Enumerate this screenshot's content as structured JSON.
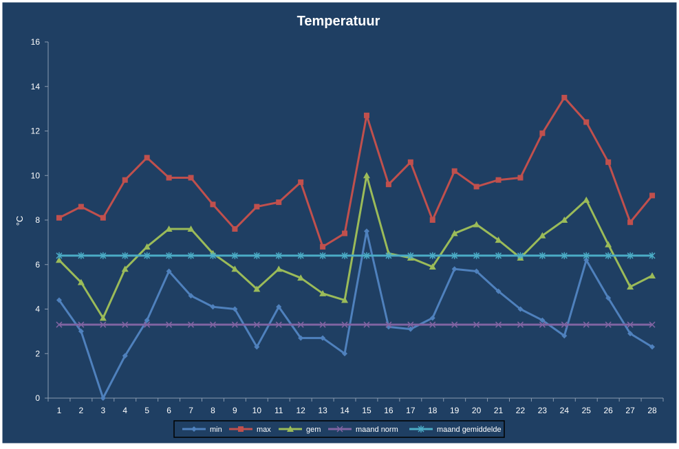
{
  "chart_data": {
    "type": "line",
    "title": "Temperatuur",
    "xlabel": "",
    "ylabel": "°C",
    "ylim": [
      0,
      16
    ],
    "yticks": [
      0,
      2,
      4,
      6,
      8,
      10,
      12,
      14,
      16
    ],
    "grid": false,
    "legend_position": "bottom",
    "x": [
      1,
      2,
      3,
      4,
      5,
      6,
      7,
      8,
      9,
      10,
      11,
      12,
      13,
      14,
      15,
      16,
      17,
      18,
      19,
      20,
      21,
      22,
      23,
      24,
      25,
      26,
      27,
      28
    ],
    "series": [
      {
        "name": "min",
        "color": "#4f81bd",
        "marker": "diamond",
        "values": [
          4.4,
          3.0,
          0.0,
          1.9,
          3.5,
          5.7,
          4.6,
          4.1,
          4.0,
          2.3,
          4.1,
          2.7,
          2.7,
          2.0,
          7.5,
          3.2,
          3.1,
          3.6,
          5.8,
          5.7,
          4.8,
          4.0,
          3.5,
          2.8,
          6.2,
          4.5,
          2.9,
          2.3
        ]
      },
      {
        "name": "max",
        "color": "#c0504d",
        "marker": "square",
        "values": [
          8.1,
          8.6,
          8.1,
          9.8,
          10.8,
          9.9,
          9.9,
          8.7,
          7.6,
          8.6,
          8.8,
          9.7,
          6.8,
          7.4,
          12.7,
          9.6,
          10.6,
          8.0,
          10.2,
          9.5,
          9.8,
          9.9,
          11.9,
          13.5,
          12.4,
          10.6,
          7.9,
          9.1
        ]
      },
      {
        "name": "gem",
        "color": "#9bbb59",
        "marker": "triangle",
        "values": [
          6.2,
          5.2,
          3.6,
          5.8,
          6.8,
          7.6,
          7.6,
          6.5,
          5.8,
          4.9,
          5.8,
          5.4,
          4.7,
          4.4,
          10.0,
          6.5,
          6.3,
          5.9,
          7.4,
          7.8,
          7.1,
          6.3,
          7.3,
          8.0,
          8.9,
          6.9,
          5.0,
          5.5
        ]
      },
      {
        "name": "maand norm",
        "color": "#8064a2",
        "marker": "x",
        "values": [
          3.3,
          3.3,
          3.3,
          3.3,
          3.3,
          3.3,
          3.3,
          3.3,
          3.3,
          3.3,
          3.3,
          3.3,
          3.3,
          3.3,
          3.3,
          3.3,
          3.3,
          3.3,
          3.3,
          3.3,
          3.3,
          3.3,
          3.3,
          3.3,
          3.3,
          3.3,
          3.3,
          3.3
        ]
      },
      {
        "name": "maand gemiddelde",
        "color": "#4bacc6",
        "marker": "star",
        "values": [
          6.4,
          6.4,
          6.4,
          6.4,
          6.4,
          6.4,
          6.4,
          6.4,
          6.4,
          6.4,
          6.4,
          6.4,
          6.4,
          6.4,
          6.4,
          6.4,
          6.4,
          6.4,
          6.4,
          6.4,
          6.4,
          6.4,
          6.4,
          6.4,
          6.4,
          6.4,
          6.4,
          6.4
        ]
      }
    ],
    "colors": {
      "background": "#1f3f63",
      "axis": "#8a9bb0",
      "text": "#ffffff",
      "legend_border": "#000000"
    }
  }
}
